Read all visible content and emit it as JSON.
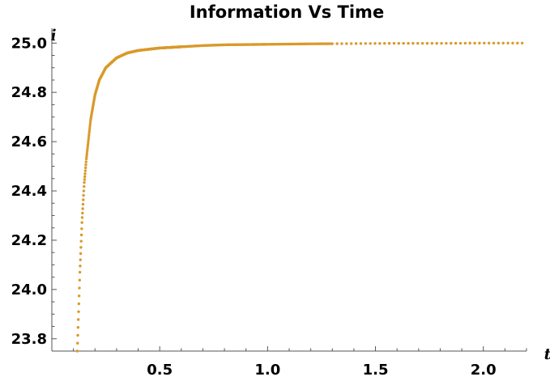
{
  "chart_data": {
    "type": "scatter",
    "title": "Information Vs Time",
    "xlabel": "t",
    "ylabel": "i",
    "xlim": [
      0,
      2.2
    ],
    "ylim": [
      23.75,
      25.06
    ],
    "x_ticks": [
      {
        "value": 0.5,
        "label": "0.5"
      },
      {
        "value": 1.0,
        "label": "1.0"
      },
      {
        "value": 1.5,
        "label": "1.5"
      },
      {
        "value": 2.0,
        "label": "2.0"
      }
    ],
    "y_ticks": [
      {
        "value": 23.8,
        "label": "23.8"
      },
      {
        "value": 24.0,
        "label": "24.0"
      },
      {
        "value": 24.2,
        "label": "24.2"
      },
      {
        "value": 24.4,
        "label": "24.4"
      },
      {
        "value": 24.6,
        "label": "24.6"
      },
      {
        "value": 24.8,
        "label": "24.8"
      },
      {
        "value": 25.0,
        "label": "25.0"
      }
    ],
    "grid": false,
    "legend": "none",
    "marker_color": "#D99A2B",
    "series": [
      {
        "x": [
          0.118,
          0.13,
          0.14,
          0.15,
          0.16,
          0.18,
          0.2,
          0.22,
          0.25,
          0.3,
          0.35,
          0.4,
          0.5,
          0.6,
          0.7,
          0.8,
          1.0,
          1.2,
          1.4,
          1.6,
          1.8,
          2.0,
          2.18
        ],
        "y": [
          23.75,
          24.07,
          24.28,
          24.43,
          24.53,
          24.69,
          24.79,
          24.85,
          24.9,
          24.94,
          24.96,
          24.97,
          24.98,
          24.985,
          24.99,
          24.993,
          24.995,
          24.997,
          24.998,
          24.999,
          24.999,
          25.0,
          25.0
        ],
        "point_spacing": [
          {
            "from": 0.118,
            "to": 0.6,
            "step": 0.0012
          },
          {
            "from": 0.6,
            "to": 1.0,
            "step": 0.0045
          },
          {
            "from": 1.0,
            "to": 1.3,
            "step": 0.007
          },
          {
            "from": 1.3,
            "to": 2.18,
            "step": 0.022
          }
        ]
      }
    ]
  }
}
